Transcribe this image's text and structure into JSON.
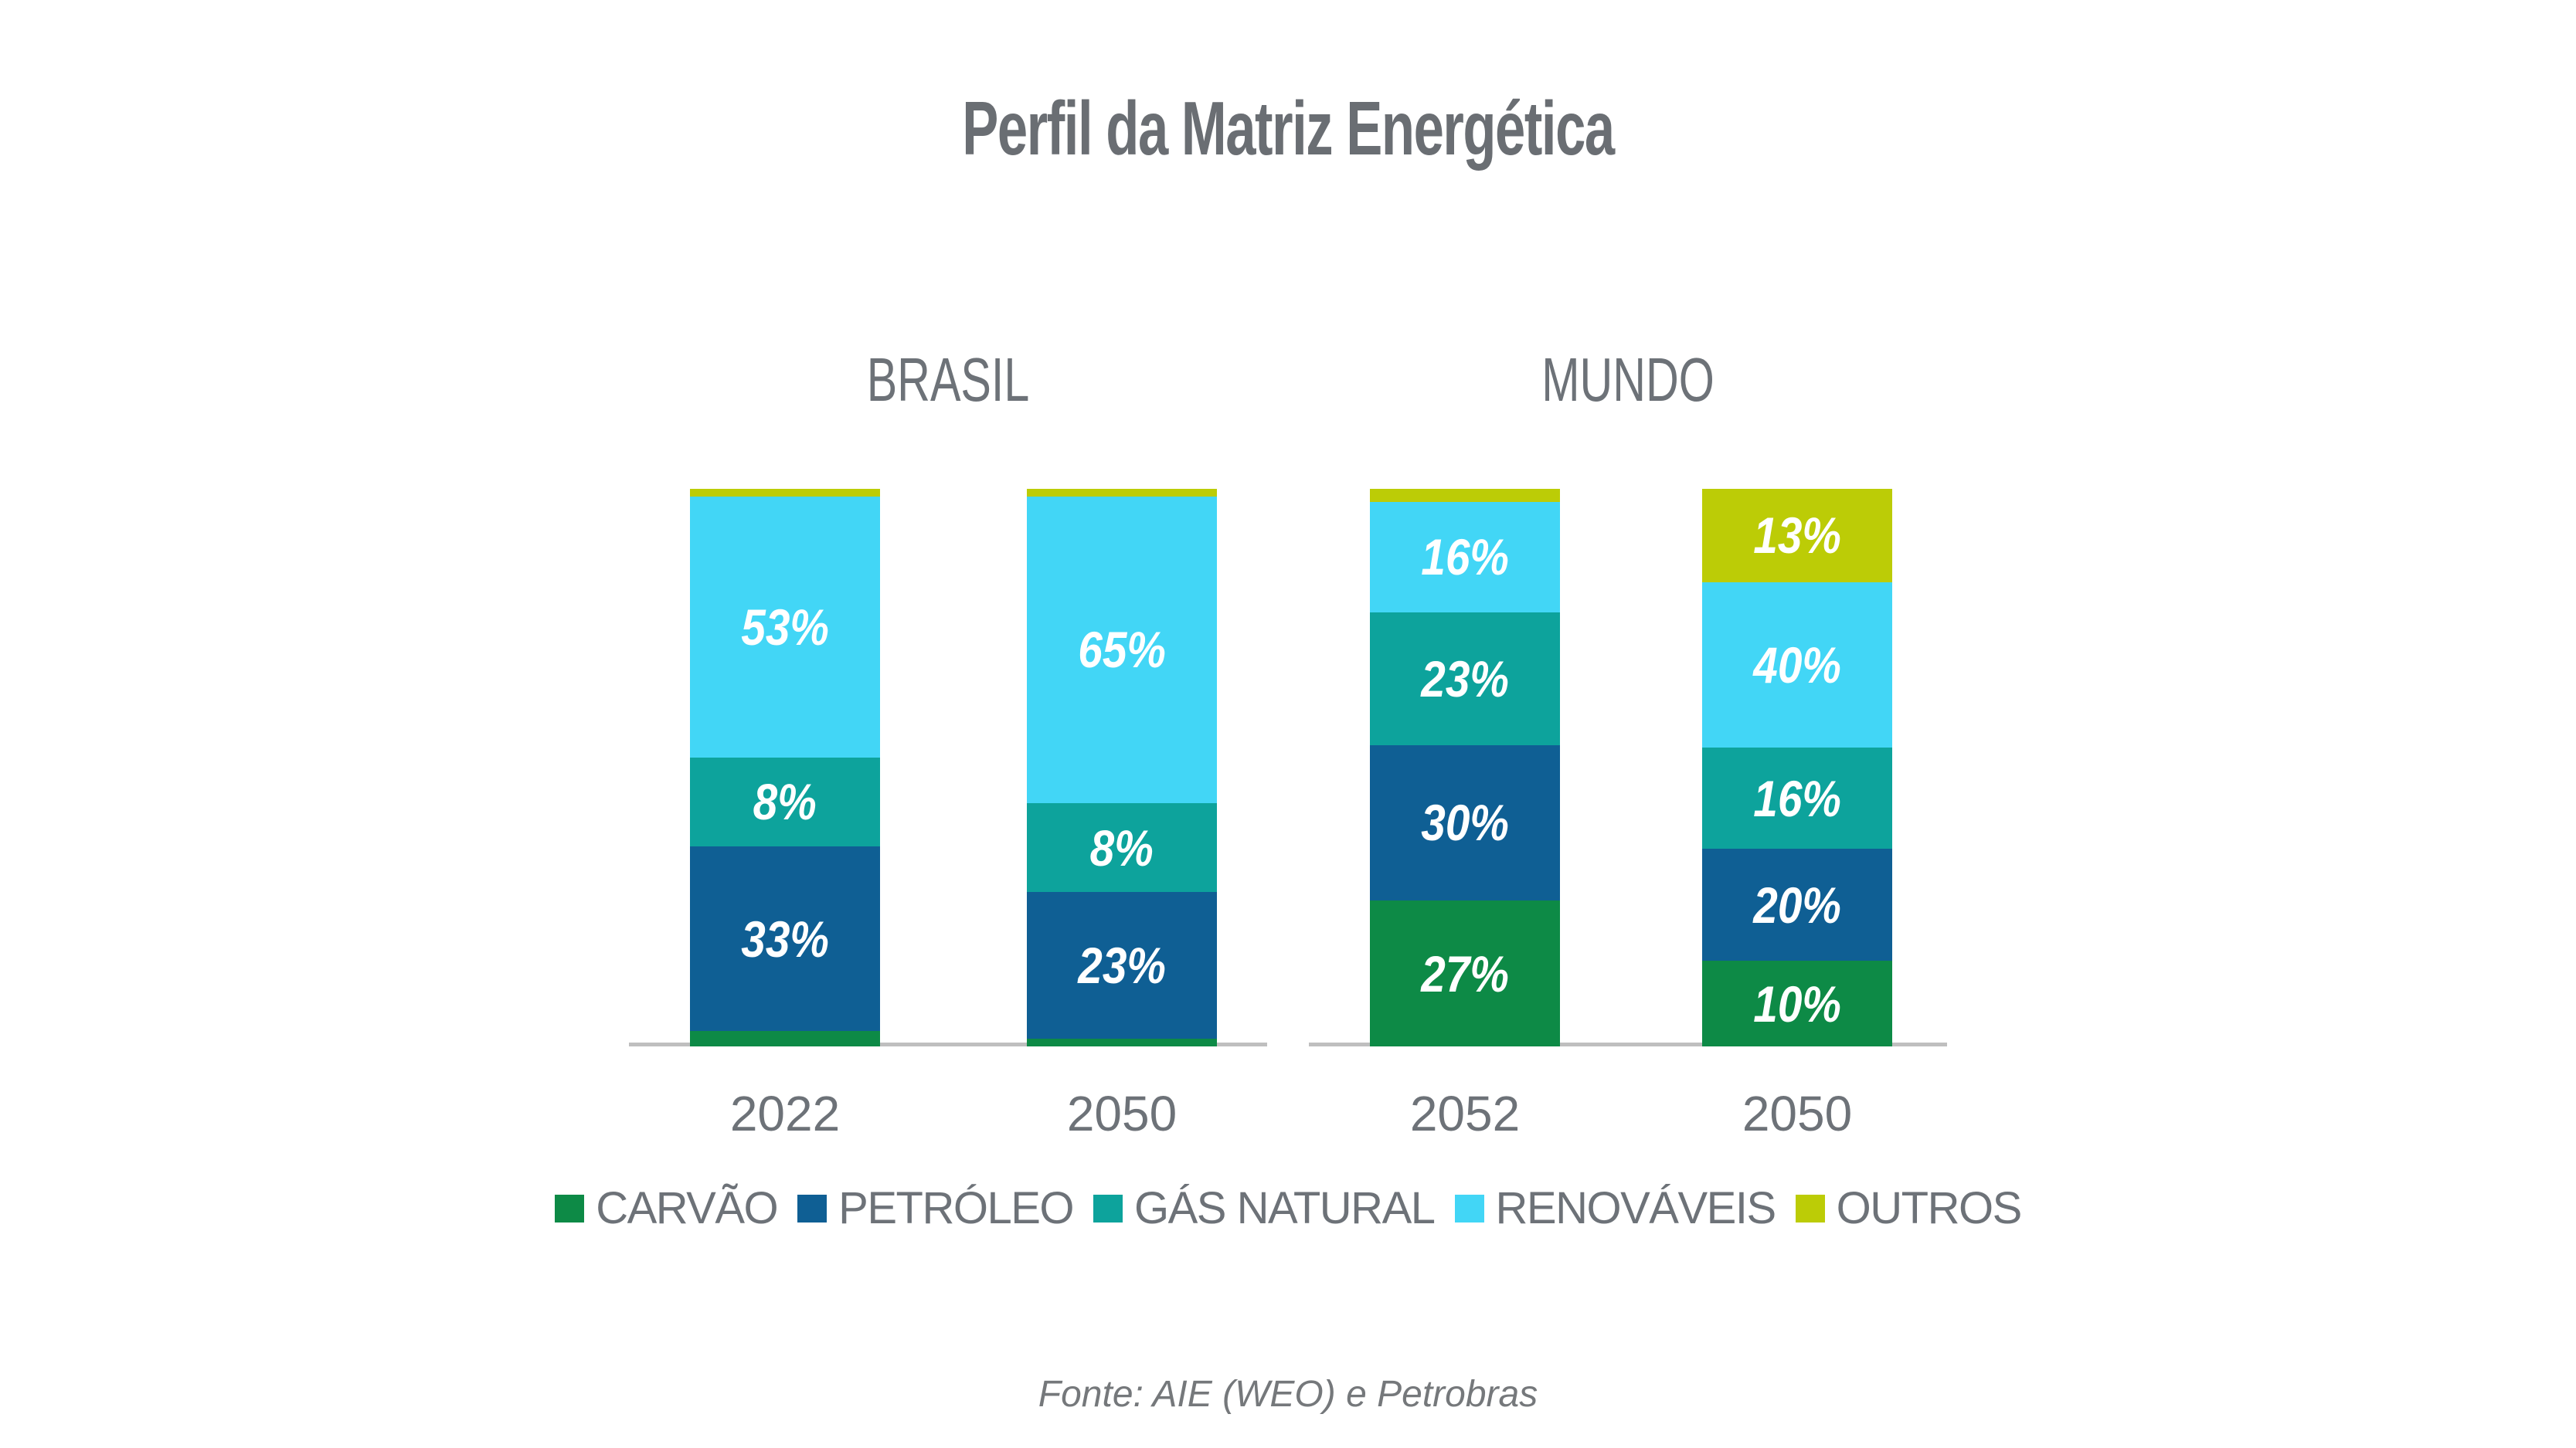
{
  "title": "Perfil da Matriz Energética",
  "source": "Fonte: AIE (WEO) e Petrobras",
  "colors": {
    "carvao": "#0D8A46",
    "petroleo": "#0F5F94",
    "gas_natural": "#0DA39C",
    "renovaveis": "#42D6F6",
    "outros": "#BCCC06",
    "title_text": "#6A6E73",
    "axis_text": "#6D7278",
    "footer_text": "#75787B",
    "baseline": "#BFBFBF",
    "segment_label_text": "#FFFFFF"
  },
  "legend": [
    {
      "label": "CARVÃO",
      "color_key": "carvao"
    },
    {
      "label": "PETRÓLEO",
      "color_key": "petroleo"
    },
    {
      "label": "GÁS NATURAL",
      "color_key": "gas_natural"
    },
    {
      "label": "RENOVÁVEIS",
      "color_key": "renovaveis"
    },
    {
      "label": "OUTROS",
      "color_key": "outros"
    }
  ],
  "chart_data": {
    "type": "bar",
    "stacked": true,
    "percent_stacked": true,
    "unit": "%",
    "value_range": [
      0,
      100
    ],
    "grid": false,
    "legend_position": "bottom",
    "title": "Perfil da Matriz Energética",
    "categories": [
      "BRASIL 2022",
      "BRASIL 2050",
      "MUNDO 2052",
      "MUNDO 2050"
    ],
    "series": [
      {
        "name": "CARVÃO",
        "values": [
          4,
          2,
          27,
          10
        ]
      },
      {
        "name": "PETRÓLEO",
        "values": [
          33,
          23,
          30,
          20
        ]
      },
      {
        "name": "GÁS NATURAL",
        "values": [
          8,
          8,
          23,
          16
        ]
      },
      {
        "name": "RENOVÁVEIS",
        "values": [
          53,
          65,
          16,
          40
        ]
      },
      {
        "name": "OUTROS",
        "values": [
          2,
          2,
          4,
          13
        ]
      }
    ],
    "note": "Values for unlabeled thin segments (CARVÃO/OUTROS in BRASIL bars, OUTROS in MUNDO 2052) are estimated from pixel heights; only segments with a label string show text in the chart.",
    "groups": [
      {
        "label": "BRASIL",
        "bars": [
          {
            "year": "2022",
            "segments": [
              {
                "series": "CARVÃO",
                "color_key": "carvao",
                "value": 4,
                "label": ""
              },
              {
                "series": "PETRÓLEO",
                "color_key": "petroleo",
                "value": 33,
                "label": "33%"
              },
              {
                "series": "GÁS NATURAL",
                "color_key": "gas_natural",
                "value": 8,
                "label": "8%"
              },
              {
                "series": "RENOVÁVEIS",
                "color_key": "renovaveis",
                "value": 53,
                "label": "53%"
              },
              {
                "series": "OUTROS",
                "color_key": "outros",
                "value": 2,
                "label": ""
              }
            ]
          },
          {
            "year": "2050",
            "segments": [
              {
                "series": "CARVÃO",
                "color_key": "carvao",
                "value": 2,
                "label": ""
              },
              {
                "series": "PETRÓLEO",
                "color_key": "petroleo",
                "value": 23,
                "label": "23%"
              },
              {
                "series": "GÁS NATURAL",
                "color_key": "gas_natural",
                "value": 8,
                "label": "8%"
              },
              {
                "series": "RENOVÁVEIS",
                "color_key": "renovaveis",
                "value": 65,
                "label": "65%"
              },
              {
                "series": "OUTROS",
                "color_key": "outros",
                "value": 2,
                "label": ""
              }
            ]
          }
        ]
      },
      {
        "label": "MUNDO",
        "bars": [
          {
            "year": "2052",
            "segments": [
              {
                "series": "CARVÃO",
                "color_key": "carvao",
                "value": 27,
                "label": "27%"
              },
              {
                "series": "PETRÓLEO",
                "color_key": "petroleo",
                "value": 30,
                "label": "30%"
              },
              {
                "series": "GÁS NATURAL",
                "color_key": "gas_natural",
                "value": 23,
                "label": "23%"
              },
              {
                "series": "RENOVÁVEIS",
                "color_key": "renovaveis",
                "value": 16,
                "label": "16%"
              },
              {
                "series": "OUTROS",
                "color_key": "outros",
                "value": 4,
                "label": ""
              }
            ]
          },
          {
            "year": "2050",
            "segments": [
              {
                "series": "CARVÃO",
                "color_key": "carvao",
                "value": 10,
                "label": "10%"
              },
              {
                "series": "PETRÓLEO",
                "color_key": "petroleo",
                "value": 20,
                "label": "20%"
              },
              {
                "series": "GÁS NATURAL",
                "color_key": "gas_natural",
                "value": 16,
                "label": "16%"
              },
              {
                "series": "RENOVÁVEIS",
                "color_key": "renovaveis",
                "value": 40,
                "label": "40%"
              },
              {
                "series": "OUTROS",
                "color_key": "outros",
                "value": 13,
                "label": "13%"
              }
            ]
          }
        ]
      }
    ]
  }
}
